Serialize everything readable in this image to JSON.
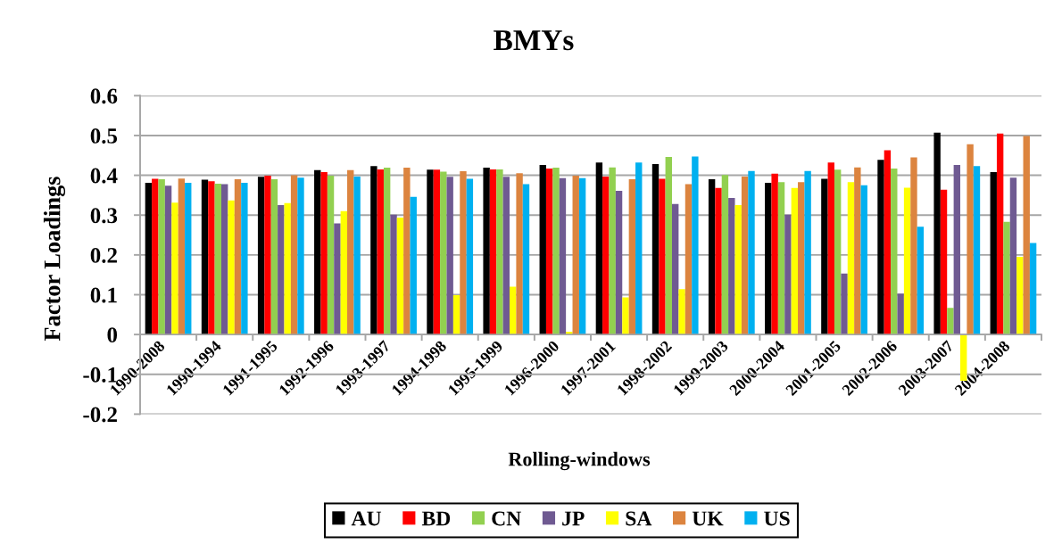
{
  "chart_data": {
    "type": "bar",
    "title": "BMYs",
    "xlabel": "Rolling-windows",
    "ylabel": "Factor Loadings",
    "categories": [
      "1990-2008",
      "1990-1994",
      "1991-1995",
      "1992-1996",
      "1993-1997",
      "1994-1998",
      "1995-1999",
      "1996-2000",
      "1997-2001",
      "1998-2002",
      "1999-2003",
      "2000-2004",
      "2001-2005",
      "2002-2006",
      "2003-2007",
      "2004-2008"
    ],
    "series": [
      {
        "name": "AU",
        "color": "#000000",
        "values": [
          0.381,
          0.389,
          0.396,
          0.413,
          0.423,
          0.414,
          0.419,
          0.426,
          0.432,
          0.428,
          0.39,
          0.381,
          0.391,
          0.439,
          0.507,
          0.408
        ]
      },
      {
        "name": "BD",
        "color": "#ff0000",
        "values": [
          0.391,
          0.385,
          0.399,
          0.408,
          0.415,
          0.414,
          0.415,
          0.417,
          0.397,
          0.391,
          0.368,
          0.404,
          0.432,
          0.463,
          0.364,
          0.505
        ]
      },
      {
        "name": "CN",
        "color": "#92d050",
        "values": [
          0.39,
          0.379,
          0.39,
          0.399,
          0.419,
          0.409,
          0.415,
          0.419,
          0.42,
          0.446,
          0.401,
          0.383,
          0.414,
          0.417,
          0.067,
          0.283
        ]
      },
      {
        "name": "JP",
        "color": "#6f5a92",
        "values": [
          0.374,
          0.378,
          0.325,
          0.279,
          0.301,
          0.396,
          0.396,
          0.393,
          0.361,
          0.328,
          0.343,
          0.301,
          0.153,
          0.103,
          0.426,
          0.394
        ]
      },
      {
        "name": "SA",
        "color": "#ffff00",
        "values": [
          0.331,
          0.337,
          0.33,
          0.31,
          0.294,
          0.099,
          0.12,
          0.007,
          0.093,
          0.114,
          0.325,
          0.368,
          0.383,
          0.369,
          -0.116,
          0.195
        ]
      },
      {
        "name": "UK",
        "color": "#dc843f",
        "values": [
          0.392,
          0.39,
          0.4,
          0.413,
          0.419,
          0.41,
          0.405,
          0.399,
          0.39,
          0.378,
          0.397,
          0.383,
          0.42,
          0.445,
          0.478,
          0.499
        ]
      },
      {
        "name": "US",
        "color": "#00b0f0",
        "values": [
          0.381,
          0.381,
          0.394,
          0.397,
          0.346,
          0.391,
          0.378,
          0.393,
          0.432,
          0.447,
          0.411,
          0.411,
          0.375,
          0.271,
          0.423,
          0.23
        ]
      }
    ],
    "ylim": [
      -0.2,
      0.6
    ],
    "yticks": [
      -0.2,
      -0.1,
      0,
      0.1,
      0.2,
      0.3,
      0.4,
      0.5,
      0.6
    ],
    "grid": "y",
    "legend": "bottom"
  }
}
